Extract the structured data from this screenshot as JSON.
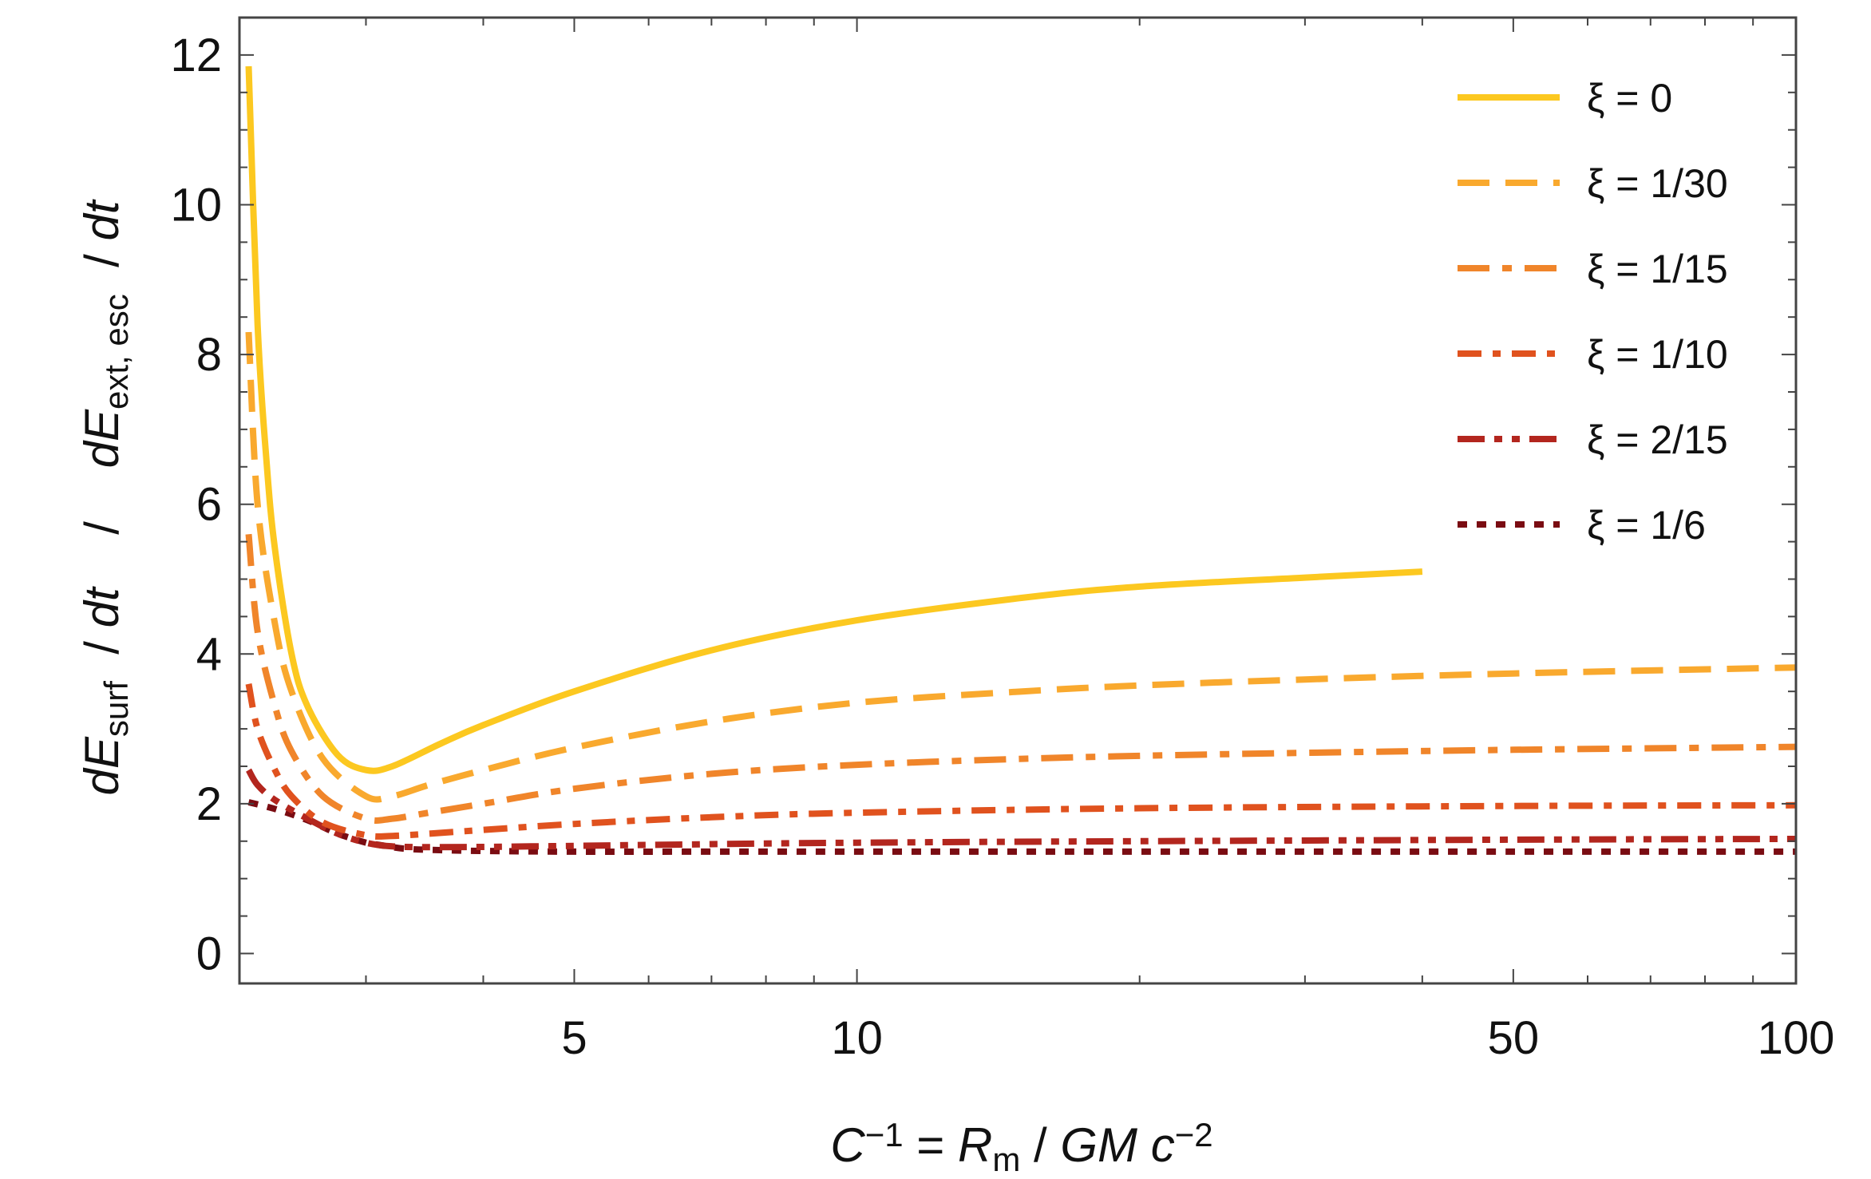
{
  "chart_data": {
    "type": "line",
    "x_scale": "log",
    "xlim": [
      2.2,
      100
    ],
    "ylim": [
      -0.4,
      12.5
    ],
    "x_ticks_major": [
      5,
      10,
      50,
      100
    ],
    "x_ticks_major_labels": [
      "5",
      "10",
      "50",
      "100"
    ],
    "x_ticks_minor": [
      3,
      4,
      6,
      7,
      8,
      9,
      20,
      30,
      40,
      60,
      70,
      80,
      90
    ],
    "y_ticks_major": [
      0,
      2,
      4,
      6,
      8,
      10,
      12
    ],
    "y_ticks_major_labels": [
      "0",
      "2",
      "4",
      "6",
      "8",
      "10",
      "12"
    ],
    "y_ticks_minor": [
      0.5,
      1,
      1.5,
      2.5,
      3,
      3.5,
      4.5,
      5,
      5.5,
      6.5,
      7,
      7.5,
      8.5,
      9,
      9.5,
      10.5,
      11,
      11.5
    ],
    "xlabel": {
      "parts": [
        {
          "t": "C",
          "style": "it"
        },
        {
          "t": "−1",
          "style": "sup"
        },
        {
          "t": " = ",
          "style": ""
        },
        {
          "t": "R",
          "style": "it"
        },
        {
          "t": "m",
          "style": "sub"
        },
        {
          "t": " / ",
          "style": ""
        },
        {
          "t": "GM c",
          "style": "it"
        },
        {
          "t": "−2",
          "style": "sup"
        }
      ]
    },
    "ylabel": {
      "parts": [
        {
          "t": "dE",
          "style": "it"
        },
        {
          "t": "surf",
          "style": "sub"
        },
        {
          "t": "  / ",
          "style": ""
        },
        {
          "t": "dt",
          "style": "it"
        },
        {
          "t": "    /    ",
          "style": ""
        },
        {
          "t": "dE",
          "style": "it"
        },
        {
          "t": "ext, esc",
          "style": "sub"
        },
        {
          "t": "  / ",
          "style": ""
        },
        {
          "t": "dt",
          "style": "it"
        }
      ]
    },
    "grid": false,
    "legend_position": "top-right",
    "series": [
      {
        "name": "ξ = 1/6",
        "color": "#7a0c12",
        "dash": "dotted",
        "x": [
          2.25,
          2.4,
          2.6,
          2.8,
          3.0,
          3.1,
          3.3,
          3.6,
          4.0,
          5.0,
          7.0,
          10,
          20,
          50,
          100
        ],
        "y": [
          2.02,
          1.93,
          1.78,
          1.6,
          1.48,
          1.45,
          1.4,
          1.38,
          1.37,
          1.36,
          1.36,
          1.36,
          1.36,
          1.36,
          1.36
        ]
      },
      {
        "name": "ξ = 2/15",
        "color": "#b3261e",
        "dash": "dashdotdot",
        "x": [
          2.25,
          2.3,
          2.4,
          2.6,
          2.8,
          3.0,
          3.2,
          3.6,
          4.5,
          6.0,
          10,
          20,
          50,
          100
        ],
        "y": [
          2.45,
          2.25,
          2.05,
          1.8,
          1.6,
          1.48,
          1.43,
          1.42,
          1.43,
          1.45,
          1.48,
          1.5,
          1.52,
          1.53
        ]
      },
      {
        "name": "ξ = 1/10",
        "color": "#e0521e",
        "dash": "dashdot2",
        "x": [
          2.25,
          2.3,
          2.4,
          2.5,
          2.7,
          3.0,
          3.2,
          3.5,
          4.0,
          5.0,
          7.0,
          10,
          20,
          50,
          100
        ],
        "y": [
          3.6,
          3.0,
          2.45,
          2.1,
          1.75,
          1.58,
          1.57,
          1.6,
          1.65,
          1.73,
          1.82,
          1.88,
          1.94,
          1.97,
          1.98
        ]
      },
      {
        "name": "ξ = 1/15",
        "color": "#f0852a",
        "dash": "dashdot",
        "x": [
          2.25,
          2.3,
          2.4,
          2.5,
          2.7,
          3.0,
          3.2,
          3.5,
          4.0,
          5.0,
          7.0,
          10,
          15,
          20,
          30,
          50,
          100
        ],
        "y": [
          5.6,
          4.3,
          3.3,
          2.7,
          2.1,
          1.8,
          1.8,
          1.88,
          2.0,
          2.2,
          2.4,
          2.52,
          2.6,
          2.64,
          2.68,
          2.72,
          2.76
        ]
      },
      {
        "name": "ξ = 1/30",
        "color": "#f9a92e",
        "dash": "dashed",
        "x": [
          2.25,
          2.3,
          2.4,
          2.5,
          2.7,
          3.0,
          3.2,
          3.5,
          4.0,
          5.0,
          7.0,
          10,
          15,
          20,
          30,
          50,
          100
        ],
        "y": [
          8.3,
          6.0,
          4.4,
          3.5,
          2.6,
          2.1,
          2.1,
          2.25,
          2.45,
          2.75,
          3.1,
          3.35,
          3.5,
          3.58,
          3.66,
          3.74,
          3.82
        ]
      },
      {
        "name": "ξ = 0",
        "color": "#fcc820",
        "dash": "solid",
        "x": [
          2.25,
          2.3,
          2.35,
          2.4,
          2.5,
          2.6,
          2.8,
          3.0,
          3.2,
          3.6,
          4.0,
          5.0,
          7.0,
          10,
          15,
          20,
          30,
          40
        ],
        "y": [
          11.85,
          8.4,
          6.6,
          5.4,
          4.0,
          3.3,
          2.65,
          2.45,
          2.5,
          2.8,
          3.05,
          3.5,
          4.05,
          4.45,
          4.75,
          4.9,
          5.02,
          5.1
        ]
      }
    ]
  }
}
